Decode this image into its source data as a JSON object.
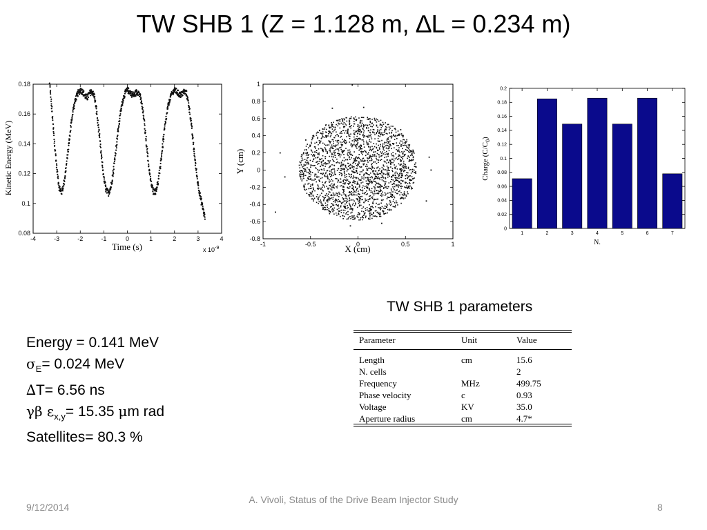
{
  "slide": {
    "title": "TW SHB 1 (Z = 1.128 m, ∆L = 0.234 m)",
    "params_title": "TW SHB 1 parameters",
    "params": {
      "energy": "Energy = 0.141 MeV",
      "sigma_symbol": "σ",
      "sigma_sub": "E",
      "sigma_text": "= 0.024 MeV",
      "dt_symbol": "∆",
      "dt_text": "T= 6.56 ns",
      "gb_symbol": "γβ ε",
      "gb_sub": "x,y",
      "gb_eq": "= 15.35 ",
      "mu_symbol": "μ",
      "gb_unit": "m rad",
      "satellites": "Satellites= 80.3 %"
    },
    "table": {
      "headers": [
        "Parameter",
        "Unit",
        "Value"
      ],
      "rows": [
        [
          "Length",
          "cm",
          "15.6"
        ],
        [
          "N. cells",
          "",
          "2"
        ],
        [
          "Frequency",
          "MHz",
          "499.75"
        ],
        [
          "Phase velocity",
          "c",
          "0.93"
        ],
        [
          "Voltage",
          "KV",
          "35.0"
        ],
        [
          "Aperture radius",
          "cm",
          "4.7*"
        ]
      ]
    },
    "footer": {
      "date": "9/12/2014",
      "center": "A. Vivoli, Status of the Drive Beam Injector Study",
      "page": "8"
    }
  },
  "chart_data": [
    {
      "type": "scatter",
      "xlabel": "Time  (s)",
      "ylabel": "Kinetic Energy  (MeV)",
      "xlim": [
        -4,
        4
      ],
      "ylim": [
        0.08,
        0.18
      ],
      "x_multiplier": "x 10",
      "x_multiplier_exp": "-9",
      "xticks": [
        -4,
        -3,
        -2,
        -1,
        0,
        1,
        2,
        3,
        4
      ],
      "yticks": [
        0.08,
        0.1,
        0.12,
        0.14,
        0.16,
        0.18
      ],
      "ytick_labels": [
        "0.08",
        "0.1",
        "0.12",
        "0.14",
        "0.16",
        "0.18"
      ],
      "points": [
        [
          -3.3,
          0.18
        ],
        [
          -3.2,
          0.162
        ],
        [
          -3.1,
          0.142
        ],
        [
          -3.0,
          0.124
        ],
        [
          -2.9,
          0.111
        ],
        [
          -2.8,
          0.107
        ],
        [
          -2.7,
          0.113
        ],
        [
          -2.6,
          0.124
        ],
        [
          -2.5,
          0.138
        ],
        [
          -2.4,
          0.152
        ],
        [
          -2.3,
          0.163
        ],
        [
          -2.2,
          0.17
        ],
        [
          -2.1,
          0.174
        ],
        [
          -2.0,
          0.176
        ],
        [
          -1.9,
          0.175
        ],
        [
          -1.8,
          0.172
        ],
        [
          -1.7,
          0.171
        ],
        [
          -1.6,
          0.174
        ],
        [
          -1.5,
          0.175
        ],
        [
          -1.4,
          0.172
        ],
        [
          -1.3,
          0.161
        ],
        [
          -1.2,
          0.147
        ],
        [
          -1.1,
          0.131
        ],
        [
          -1.0,
          0.117
        ],
        [
          -0.9,
          0.109
        ],
        [
          -0.8,
          0.107
        ],
        [
          -0.7,
          0.111
        ],
        [
          -0.6,
          0.121
        ],
        [
          -0.5,
          0.134
        ],
        [
          -0.4,
          0.148
        ],
        [
          -0.3,
          0.16
        ],
        [
          -0.2,
          0.169
        ],
        [
          -0.1,
          0.174
        ],
        [
          0.0,
          0.176
        ],
        [
          0.1,
          0.175
        ],
        [
          0.2,
          0.173
        ],
        [
          0.3,
          0.173
        ],
        [
          0.4,
          0.175
        ],
        [
          0.5,
          0.174
        ],
        [
          0.6,
          0.168
        ],
        [
          0.7,
          0.157
        ],
        [
          0.8,
          0.142
        ],
        [
          0.9,
          0.126
        ],
        [
          1.0,
          0.114
        ],
        [
          1.1,
          0.108
        ],
        [
          1.2,
          0.108
        ],
        [
          1.3,
          0.114
        ],
        [
          1.4,
          0.125
        ],
        [
          1.5,
          0.139
        ],
        [
          1.6,
          0.152
        ],
        [
          1.7,
          0.163
        ],
        [
          1.8,
          0.17
        ],
        [
          1.9,
          0.174
        ],
        [
          2.0,
          0.176
        ],
        [
          2.1,
          0.175
        ],
        [
          2.2,
          0.173
        ],
        [
          2.3,
          0.173
        ],
        [
          2.4,
          0.175
        ],
        [
          2.5,
          0.174
        ],
        [
          2.6,
          0.167
        ],
        [
          2.7,
          0.155
        ],
        [
          2.8,
          0.14
        ],
        [
          2.9,
          0.125
        ],
        [
          3.0,
          0.113
        ],
        [
          3.1,
          0.104
        ],
        [
          3.2,
          0.097
        ],
        [
          3.3,
          0.09
        ]
      ]
    },
    {
      "type": "scatter",
      "xlabel": "X  (cm)",
      "ylabel": "Y  (cm)",
      "xlim": [
        -1,
        1
      ],
      "ylim": [
        -0.8,
        1
      ],
      "xticks": [
        -1,
        -0.5,
        0,
        0.5,
        1
      ],
      "xtick_labels": [
        "-1",
        "-0.5",
        "0",
        "0.5",
        "1"
      ],
      "yticks": [
        -0.8,
        -0.6,
        -0.4,
        -0.2,
        0,
        0.2,
        0.4,
        0.6,
        0.8,
        1
      ],
      "ytick_labels": [
        "-0.8",
        "-0.6",
        "-0.4",
        "-0.2",
        "0",
        "0.2",
        "0.4",
        "0.6",
        "0.8",
        "1"
      ],
      "distribution": "approximately uniform disk, radius about 0.6 cm, centred at (0, 0.02)",
      "points": [
        [
          -0.06,
          0.99
        ],
        [
          -0.82,
          0.2
        ],
        [
          -0.87,
          -0.49
        ],
        [
          -0.77,
          -0.08
        ],
        [
          0.75,
          0.15
        ],
        [
          0.77,
          0.0
        ],
        [
          0.72,
          -0.36
        ],
        [
          0.06,
          0.73
        ],
        [
          -0.27,
          0.72
        ],
        [
          0.25,
          -0.62
        ],
        [
          -0.08,
          -0.65
        ],
        [
          0.45,
          0.47
        ],
        [
          -0.55,
          0.35
        ],
        [
          0.58,
          -0.1
        ],
        [
          -0.6,
          -0.05
        ],
        [
          0.0,
          -0.55
        ]
      ]
    },
    {
      "type": "bar",
      "xlabel": "N.",
      "ylabel": "Charge (C/C",
      "ylabel_sub": "0",
      "ylabel_end": ")",
      "categories": [
        "1",
        "2",
        "3",
        "4",
        "5",
        "6",
        "7"
      ],
      "values": [
        0.071,
        0.185,
        0.149,
        0.186,
        0.149,
        0.186,
        0.078
      ],
      "ylim": [
        0,
        0.2
      ],
      "yticks": [
        0,
        0.02,
        0.04,
        0.06,
        0.08,
        0.1,
        0.12,
        0.14,
        0.16,
        0.18,
        0.2
      ],
      "ytick_labels": [
        "0",
        "0.02",
        "0.04",
        "0.06",
        "0.08",
        "0.1",
        "0.12",
        "0.14",
        "0.16",
        "0.18",
        "0.2"
      ],
      "bar_color": "#0a0a8c"
    }
  ]
}
